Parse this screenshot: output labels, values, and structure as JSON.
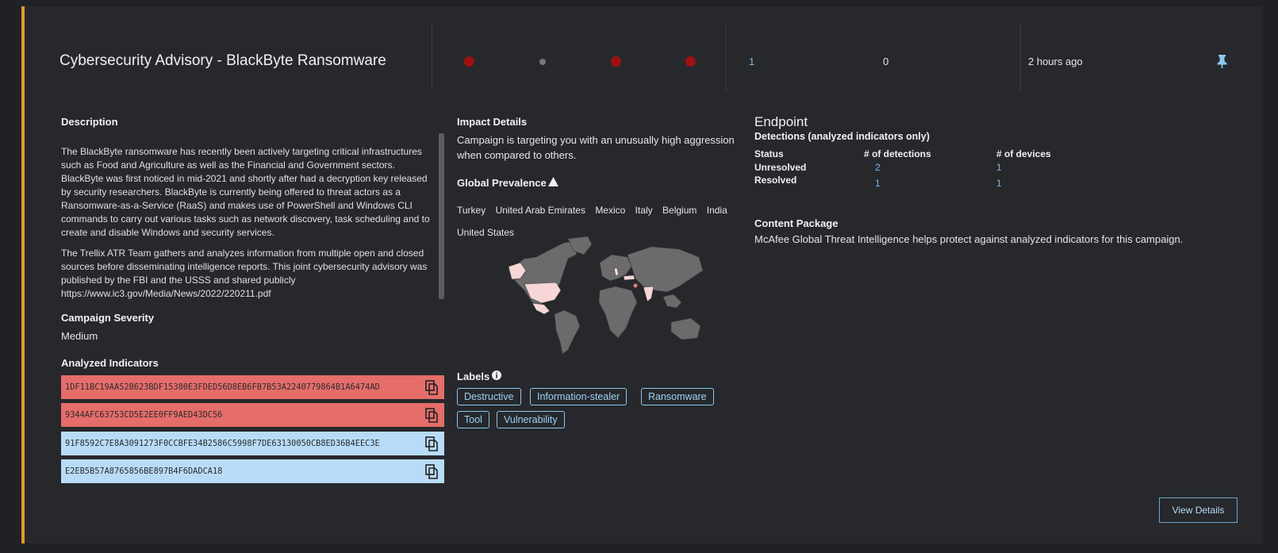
{
  "header": {
    "title": "Cybersecurity Advisory - BlackByte Ransomware",
    "count_a": "1",
    "count_b": "0",
    "time": "2 hours ago"
  },
  "description": {
    "heading": "Description",
    "p1": "The BlackByte ransomware has recently been actively targeting critical infrastructures such as Food and Agriculture as well as the Financial and Government sectors. BlackByte was first noticed in mid-2021 and shortly after had a decryption key released by security researchers. BlackByte is currently being offered to threat actors as a Ransomware-as-a-Service (RaaS) and makes use of PowerShell and Windows CLI commands to carry out various tasks such as network discovery, task scheduling and to create and disable Windows and security services.",
    "p2": "The Trellix ATR Team gathers and analyzes information from multiple open and closed sources before disseminating intelligence reports. This joint cybersecurity advisory was published by the FBI and the USSS and shared publicly https://www.ic3.gov/Media/News/2022/220211.pdf"
  },
  "severity": {
    "heading": "Campaign Severity",
    "value": "Medium"
  },
  "indicators": {
    "heading": "Analyzed Indicators",
    "items": [
      "1DF11BC19AA52B623BDF15380E3FDED56D8EB6FB7B53A2240779864B1A6474AD",
      "9344AFC63753CD5E2EE0FF9AED43DC56",
      "91F8592C7E8A3091273F0CCBFE34B2586C5998F7DE63130050CB8ED36B4EEC3E",
      "E2EB5B57A8765856BE897B4F6DADCA18"
    ]
  },
  "impact": {
    "heading": "Impact Details",
    "text": "Campaign is targeting you with an unusually high aggression when compared to others."
  },
  "prevalence": {
    "heading": "Global Prevalence",
    "countries": [
      "Turkey",
      "United Arab Emirates",
      "Mexico",
      "Italy",
      "Belgium",
      "India",
      "United States"
    ]
  },
  "labels": {
    "heading": "Labels",
    "items": [
      "Destructive",
      "Information-stealer",
      "Ransomware",
      "Tool",
      "Vulnerability"
    ]
  },
  "endpoint": {
    "heading": "Endpoint",
    "subheading": "Detections (analyzed indicators only)",
    "col_status": "Status",
    "col_detections": "# of detections",
    "col_devices": "# of devices",
    "rows": [
      {
        "status": "Unresolved",
        "detections": "2",
        "devices": "1"
      },
      {
        "status": "Resolved",
        "detections": "1",
        "devices": "1"
      }
    ]
  },
  "content_package": {
    "heading": "Content Package",
    "text": "McAfee Global Threat Intelligence helps protect against analyzed indicators for this campaign."
  },
  "actions": {
    "view_details": "View Details"
  },
  "colors": {
    "accent": "#e79a2b",
    "severity_red": "#a01010",
    "hash_red": "#e56d6a",
    "hash_blue": "#b8dcf8",
    "link": "#7fb7e8"
  }
}
